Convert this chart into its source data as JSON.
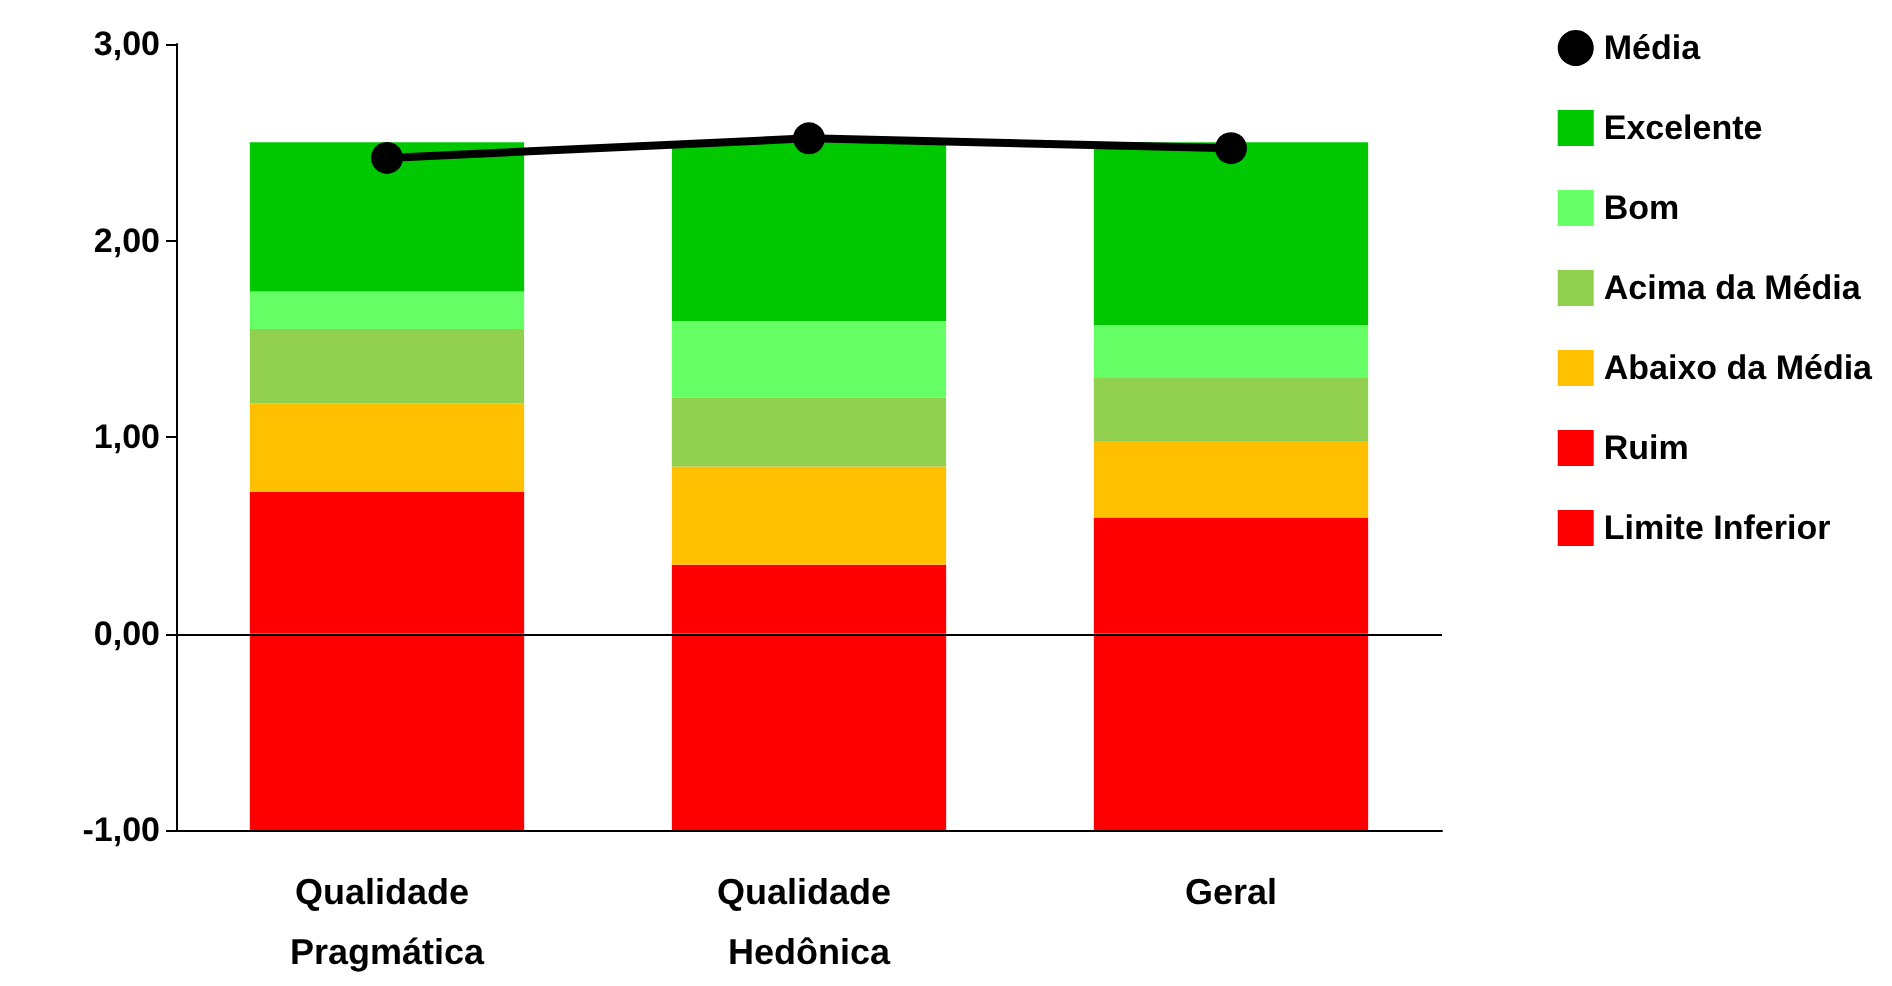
{
  "chart_data": {
    "type": "bar",
    "stacked": true,
    "categories": [
      "Qualidade Pragmática",
      "Qualidade Hedônica",
      "Geral"
    ],
    "series": [
      {
        "name": "Limite Inferior",
        "color": "#ff0000",
        "values": [
          -1,
          -1,
          -1
        ]
      },
      {
        "name": "Ruim",
        "color": "#ff0000",
        "values": [
          0.72,
          0.35,
          0.59
        ]
      },
      {
        "name": "Abaixo da Média",
        "color": "#ffc000",
        "values": [
          0.45,
          0.5,
          0.39
        ]
      },
      {
        "name": "Acima da Média",
        "color": "#92d050",
        "values": [
          0.38,
          0.35,
          0.32
        ]
      },
      {
        "name": "Bom",
        "color": "#66ff66",
        "values": [
          0.19,
          0.39,
          0.27
        ]
      },
      {
        "name": "Excelente",
        "color": "#00c800",
        "values": [
          0.76,
          0.91,
          0.93
        ]
      },
      {
        "name": "Média",
        "type": "line",
        "color": "#000000",
        "values": [
          2.42,
          2.52,
          2.47
        ]
      }
    ],
    "ylim": [
      -1,
      3
    ],
    "yticks": [
      {
        "value": -1,
        "label": "-1,00"
      },
      {
        "value": 0,
        "label": "0,00"
      },
      {
        "value": 1,
        "label": "1,00"
      },
      {
        "value": 2,
        "label": "2,00"
      },
      {
        "value": 3,
        "label": "3,00"
      }
    ],
    "ref_lines": [
      {
        "axis": "y",
        "value": 0,
        "color": "#000000"
      }
    ],
    "grid": false,
    "legend": "right",
    "marker": "circle",
    "line_style": "solid"
  }
}
